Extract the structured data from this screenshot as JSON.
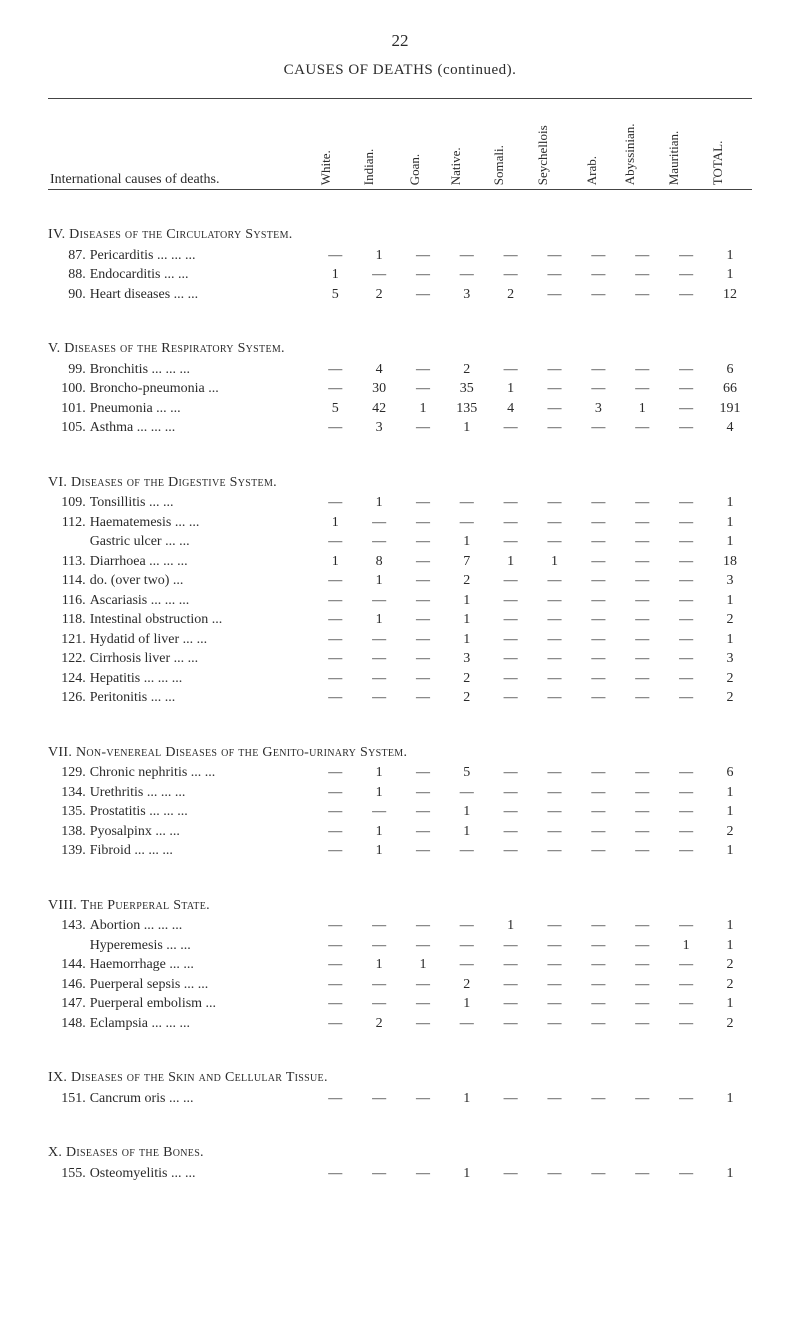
{
  "page_number": "22",
  "title": "CAUSES OF DEATHS (continued).",
  "left_header": "International causes of deaths.",
  "columns": [
    "White.",
    "Indian.",
    "Goan.",
    "Native.",
    "Somali.",
    "Seychellois",
    "Arab.",
    "Abyssinian.",
    "Mauritian.",
    "TOTAL."
  ],
  "em_dash": "—",
  "sections": [
    {
      "roman": "IV.",
      "heading": "Diseases of the Circulatory System.",
      "rows": [
        {
          "n": "87.",
          "name": "Pericarditis  ...      ...   ...",
          "v": [
            "—",
            "1",
            "—",
            "—",
            "—",
            "—",
            "—",
            "—",
            "—",
            "1"
          ]
        },
        {
          "n": "88.",
          "name": "Endocarditis          ...   ...",
          "v": [
            "1",
            "—",
            "—",
            "—",
            "—",
            "—",
            "—",
            "—",
            "—",
            "1"
          ]
        },
        {
          "n": "90.",
          "name": "Heart diseases        ...   ...",
          "v": [
            "5",
            "2",
            "—",
            "3",
            "2",
            "—",
            "—",
            "—",
            "—",
            "12"
          ]
        }
      ]
    },
    {
      "roman": "V.",
      "heading": "Diseases of the Respiratory System.",
      "rows": [
        {
          "n": "99.",
          "name": "Bronchitis   ...      ...   ...",
          "v": [
            "—",
            "4",
            "—",
            "2",
            "—",
            "—",
            "—",
            "—",
            "—",
            "6"
          ]
        },
        {
          "n": "100.",
          "name": "Broncho-pneumonia         ...",
          "v": [
            "—",
            "30",
            "—",
            "35",
            "1",
            "—",
            "—",
            "—",
            "—",
            "66"
          ]
        },
        {
          "n": "101.",
          "name": "Pneumonia             ...   ...",
          "v": [
            "5",
            "42",
            "1",
            "135",
            "4",
            "—",
            "3",
            "1",
            "—",
            "191"
          ]
        },
        {
          "n": "105.",
          "name": "Asthma       ...      ...   ...",
          "v": [
            "—",
            "3",
            "—",
            "1",
            "—",
            "—",
            "—",
            "—",
            "—",
            "4"
          ]
        }
      ]
    },
    {
      "roman": "VI.",
      "heading": "Diseases of the Digestive System.",
      "rows": [
        {
          "n": "109.",
          "name": "Tonsillitis           ...   ...",
          "v": [
            "—",
            "1",
            "—",
            "—",
            "—",
            "—",
            "—",
            "—",
            "—",
            "1"
          ]
        },
        {
          "n": "112.",
          "name": "Haematemesis         ...   ...",
          "v": [
            "1",
            "—",
            "—",
            "—",
            "—",
            "—",
            "—",
            "—",
            "—",
            "1"
          ]
        },
        {
          "n": "",
          "name": "Gastric ulcer         ...   ...",
          "v": [
            "—",
            "—",
            "—",
            "1",
            "—",
            "—",
            "—",
            "—",
            "—",
            "1"
          ]
        },
        {
          "n": "113.",
          "name": "Diarrhoea    ...      ...   ...",
          "v": [
            "1",
            "8",
            "—",
            "7",
            "1",
            "1",
            "—",
            "—",
            "—",
            "18"
          ]
        },
        {
          "n": "114.",
          "name": "   do.    (over two)        ...",
          "v": [
            "—",
            "1",
            "—",
            "2",
            "—",
            "—",
            "—",
            "—",
            "—",
            "3"
          ]
        },
        {
          "n": "116.",
          "name": "Ascariasis   ...      ...   ...",
          "v": [
            "—",
            "—",
            "—",
            "1",
            "—",
            "—",
            "—",
            "—",
            "—",
            "1"
          ]
        },
        {
          "n": "118.",
          "name": "Intestinal obstruction     ...",
          "v": [
            "—",
            "1",
            "—",
            "1",
            "—",
            "—",
            "—",
            "—",
            "—",
            "2"
          ]
        },
        {
          "n": "121.",
          "name": "Hydatid of liver  ...      ...",
          "v": [
            "—",
            "—",
            "—",
            "1",
            "—",
            "—",
            "—",
            "—",
            "—",
            "1"
          ]
        },
        {
          "n": "122.",
          "name": "Cirrhosis liver       ...   ...",
          "v": [
            "—",
            "—",
            "—",
            "3",
            "—",
            "—",
            "—",
            "—",
            "—",
            "3"
          ]
        },
        {
          "n": "124.",
          "name": "Hepatitis    ...      ...   ...",
          "v": [
            "—",
            "—",
            "—",
            "2",
            "—",
            "—",
            "—",
            "—",
            "—",
            "2"
          ]
        },
        {
          "n": "126.",
          "name": "Peritonitis           ...   ...",
          "v": [
            "—",
            "—",
            "—",
            "2",
            "—",
            "—",
            "—",
            "—",
            "—",
            "2"
          ]
        }
      ]
    },
    {
      "roman": "VII.",
      "heading": "Non-venereal Diseases of the Genito-urinary System.",
      "rows": [
        {
          "n": "129.",
          "name": "Chronic nephritis  ...     ...",
          "v": [
            "—",
            "1",
            "—",
            "5",
            "—",
            "—",
            "—",
            "—",
            "—",
            "6"
          ]
        },
        {
          "n": "134.",
          "name": "Urethritis   ...      ...   ...",
          "v": [
            "—",
            "1",
            "—",
            "—",
            "—",
            "—",
            "—",
            "—",
            "—",
            "1"
          ]
        },
        {
          "n": "135.",
          "name": "Prostatitis  ...      ...   ...",
          "v": [
            "—",
            "—",
            "—",
            "1",
            "—",
            "—",
            "—",
            "—",
            "—",
            "1"
          ]
        },
        {
          "n": "138.",
          "name": "Pyosalpinx            ...   ...",
          "v": [
            "—",
            "1",
            "—",
            "1",
            "—",
            "—",
            "—",
            "—",
            "—",
            "2"
          ]
        },
        {
          "n": "139.",
          "name": "Fibroid      ...      ...   ...",
          "v": [
            "—",
            "1",
            "—",
            "—",
            "—",
            "—",
            "—",
            "—",
            "—",
            "1"
          ]
        }
      ]
    },
    {
      "roman": "VIII.",
      "heading": "The Puerperal State.",
      "rows": [
        {
          "n": "143.",
          "name": "Abortion     ...      ...   ...",
          "v": [
            "—",
            "—",
            "—",
            "—",
            "1",
            "—",
            "—",
            "—",
            "—",
            "1"
          ]
        },
        {
          "n": "",
          "name": "Hyperemesis           ...   ...",
          "v": [
            "—",
            "—",
            "—",
            "—",
            "—",
            "—",
            "—",
            "—",
            "1",
            "1"
          ]
        },
        {
          "n": "144.",
          "name": "Haemorrhage           ...   ...",
          "v": [
            "—",
            "1",
            "1",
            "—",
            "—",
            "—",
            "—",
            "—",
            "—",
            "2"
          ]
        },
        {
          "n": "146.",
          "name": "Puerperal sepsis   ...     ...",
          "v": [
            "—",
            "—",
            "—",
            "2",
            "—",
            "—",
            "—",
            "—",
            "—",
            "2"
          ]
        },
        {
          "n": "147.",
          "name": "Puerperal embolism        ...",
          "v": [
            "—",
            "—",
            "—",
            "1",
            "—",
            "—",
            "—",
            "—",
            "—",
            "1"
          ]
        },
        {
          "n": "148.",
          "name": "Eclampsia    ...      ...   ...",
          "v": [
            "—",
            "2",
            "—",
            "—",
            "—",
            "—",
            "—",
            "—",
            "—",
            "2"
          ]
        }
      ]
    },
    {
      "roman": "IX.",
      "heading": "Diseases of the Skin and Cellular Tissue.",
      "rows": [
        {
          "n": "151.",
          "name": "Cancrum oris         ...   ...",
          "v": [
            "—",
            "—",
            "—",
            "1",
            "—",
            "—",
            "—",
            "—",
            "—",
            "1"
          ]
        }
      ]
    },
    {
      "roman": "X.",
      "heading": "Diseases of the Bones.",
      "rows": [
        {
          "n": "155.",
          "name": "Osteomyelitis        ...   ...",
          "v": [
            "—",
            "—",
            "—",
            "1",
            "—",
            "—",
            "—",
            "—",
            "—",
            "1"
          ]
        }
      ]
    }
  ]
}
